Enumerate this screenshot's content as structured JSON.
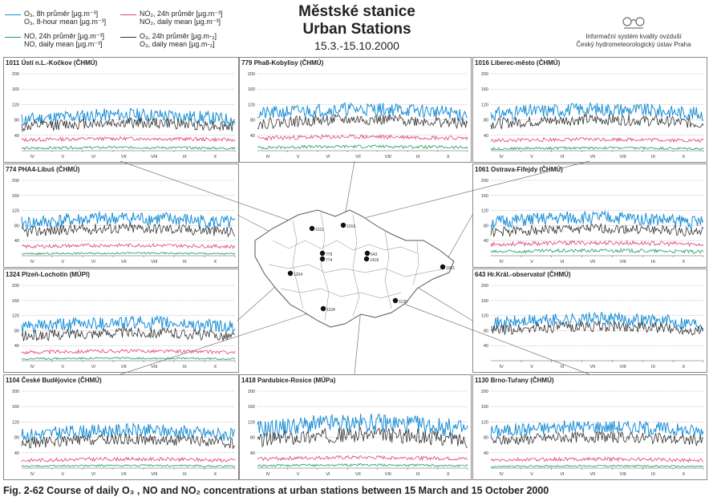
{
  "title": {
    "cs": "Městské stanice",
    "en": "Urban Stations",
    "period": "15.3.-15.10.2000"
  },
  "institution": {
    "logo_icon": "chmi-logo-icon",
    "line1": "Informační systém kvality ovzduší",
    "line2": "Český hydrometeorologický ústav Praha"
  },
  "legend": [
    {
      "line1": "O₃, 8h průměr [µg.m⁻³]",
      "line2": "O₃, 8-hour mean [µg.m⁻³]",
      "color": "#1a8fd6"
    },
    {
      "line1": "NO₂, 24h průměr [µg.m⁻³]",
      "line2": "NO₂, daily mean [µg.m⁻³]",
      "color": "#e0407a"
    },
    {
      "line1": "NO, 24h průměr [µg.m⁻³]",
      "line2": "NO, daily mean [µg.m⁻³]",
      "color": "#1e9e5a"
    },
    {
      "line1": "O₃, 24h průměr [µg.m-₃]",
      "line2": "O₃, daily mean [µg.m-₃]",
      "color": "#333333"
    }
  ],
  "caption": "Fig. 2-62  Course of daily O₃ , NO and NO₂ concentrations at urban stations between 15 March and 15 October 2000",
  "colors": {
    "o3_8h": "#1a8fd6",
    "no2": "#e0407a",
    "no": "#1e9e5a",
    "o3_daily": "#333333",
    "grid": "#999999"
  },
  "chart_data": [
    {
      "type": "line",
      "title": "1011 Ústí n.L.-Kočkov (ČHMÚ)",
      "ylim": [
        0,
        200
      ],
      "yticks": [
        40,
        80,
        120,
        160,
        200
      ],
      "xticks": [
        "IV",
        "V",
        "VI",
        "VII",
        "VIII",
        "IX",
        "X"
      ],
      "series": [
        {
          "name": "O₃, 8h průměr",
          "level": 80,
          "amp": 22,
          "seed": 11
        },
        {
          "name": "O₃, 24h průměr",
          "level": 62,
          "amp": 18,
          "seed": 12
        },
        {
          "name": "NO₂, 24h průměr",
          "level": 28,
          "amp": 6,
          "seed": 13
        },
        {
          "name": "NO, 24h průměr",
          "level": 6,
          "amp": 4,
          "seed": 14
        }
      ]
    },
    {
      "type": "line",
      "title": "779 Pha8-Kobylisy (ČHMÚ)",
      "ylim": [
        0,
        200
      ],
      "yticks": [
        40,
        80,
        120,
        160,
        200
      ],
      "xticks": [
        "IV",
        "V",
        "VI",
        "VII",
        "VIII",
        "IX",
        "X"
      ],
      "series": [
        {
          "name": "O₃, 8h průměr",
          "level": 95,
          "amp": 22,
          "seed": 21
        },
        {
          "name": "O₃, 24h průměr",
          "level": 70,
          "amp": 18,
          "seed": 22
        },
        {
          "name": "NO₂, 24h průměr",
          "level": 32,
          "amp": 7,
          "seed": 23
        },
        {
          "name": "NO, 24h průměr",
          "level": 8,
          "amp": 5,
          "seed": 24
        }
      ]
    },
    {
      "type": "line",
      "title": "1016 Liberec-město (ČHMÚ)",
      "ylim": [
        0,
        200
      ],
      "yticks": [
        40,
        80,
        120,
        160,
        200
      ],
      "xticks": [
        "IV",
        "V",
        "VI",
        "VII",
        "VIII",
        "IX",
        "X"
      ],
      "series": [
        {
          "name": "O₃, 8h průměr",
          "level": 95,
          "amp": 22,
          "seed": 31
        },
        {
          "name": "O₃, 24h průměr",
          "level": 70,
          "amp": 18,
          "seed": 32
        },
        {
          "name": "NO₂, 24h průměr",
          "level": 26,
          "amp": 6,
          "seed": 33
        },
        {
          "name": "NO, 24h průměr",
          "level": 5,
          "amp": 4,
          "seed": 34
        }
      ]
    },
    {
      "type": "line",
      "title": "774 PHA4-Libuš (ČHMÚ)",
      "ylim": [
        0,
        200
      ],
      "yticks": [
        40,
        80,
        120,
        160,
        200
      ],
      "xticks": [
        "IV",
        "V",
        "VI",
        "VII",
        "VIII",
        "IX",
        "X"
      ],
      "series": [
        {
          "name": "O₃, 8h průměr",
          "level": 85,
          "amp": 24,
          "seed": 41
        },
        {
          "name": "O₃, 24h průměr",
          "level": 62,
          "amp": 18,
          "seed": 42
        },
        {
          "name": "NO₂, 24h průměr",
          "level": 24,
          "amp": 6,
          "seed": 43
        },
        {
          "name": "NO, 24h průměr",
          "level": 5,
          "amp": 3,
          "seed": 44
        }
      ]
    },
    {
      "type": "line",
      "title": "1061 Ostrava-Fifejdy (ČHMÚ)",
      "ylim": [
        0,
        200
      ],
      "yticks": [
        40,
        80,
        120,
        160,
        200
      ],
      "xticks": [
        "IV",
        "V",
        "VI",
        "VII",
        "VIII",
        "IX",
        "X"
      ],
      "series": [
        {
          "name": "O₃, 8h průměr",
          "level": 88,
          "amp": 22,
          "seed": 51
        },
        {
          "name": "O₃, 24h průměr",
          "level": 62,
          "amp": 16,
          "seed": 52
        },
        {
          "name": "NO₂, 24h průměr",
          "level": 30,
          "amp": 7,
          "seed": 53
        },
        {
          "name": "NO, 24h průměr",
          "level": 10,
          "amp": 6,
          "seed": 54
        }
      ]
    },
    {
      "type": "line",
      "title": "1324 Plzeň-Lochotín (MÚPl)",
      "ylim": [
        0,
        200
      ],
      "yticks": [
        40,
        80,
        120,
        160,
        200
      ],
      "xticks": [
        "IV",
        "V",
        "VI",
        "VII",
        "VIII",
        "IX",
        "X"
      ],
      "series": [
        {
          "name": "O₃, 8h průměr",
          "level": 88,
          "amp": 22,
          "seed": 61
        },
        {
          "name": "O₃, 24h průměr",
          "level": 64,
          "amp": 18,
          "seed": 62
        },
        {
          "name": "NO₂, 24h průměr",
          "level": 22,
          "amp": 6,
          "seed": 63
        },
        {
          "name": "NO, 24h průměr",
          "level": 5,
          "amp": 3,
          "seed": 64
        }
      ]
    },
    {
      "type": "line",
      "title": "643 Hr.Král.-observatoř (ČHMÚ)",
      "ylim": [
        0,
        200
      ],
      "yticks": [
        40,
        80,
        120,
        160,
        200
      ],
      "xticks": [
        "IV",
        "V",
        "VI",
        "VII",
        "VIII",
        "IX",
        "X"
      ],
      "series": [
        {
          "name": "O₃, 8h průměr",
          "level": 98,
          "amp": 22,
          "seed": 71
        },
        {
          "name": "O₃, 24h průměr",
          "level": 80,
          "amp": 18,
          "seed": 72
        }
      ]
    },
    {
      "type": "line",
      "title": "1104 České Budějovice (ČHMÚ)",
      "ylim": [
        0,
        200
      ],
      "yticks": [
        40,
        80,
        120,
        160,
        200
      ],
      "xticks": [
        "IV",
        "V",
        "VI",
        "VII",
        "VIII",
        "IX",
        "X"
      ],
      "series": [
        {
          "name": "O₃, 8h průměr",
          "level": 85,
          "amp": 22,
          "seed": 81
        },
        {
          "name": "O₃, 24h průměr",
          "level": 64,
          "amp": 18,
          "seed": 82
        },
        {
          "name": "NO₂, 24h průměr",
          "level": 20,
          "amp": 6,
          "seed": 83
        },
        {
          "name": "NO, 24h průměr",
          "level": 5,
          "amp": 3,
          "seed": 84
        }
      ]
    },
    {
      "type": "line",
      "title": "1418 Pardubice-Rosice (MÚPa)",
      "ylim": [
        0,
        200
      ],
      "yticks": [
        40,
        80,
        120,
        160,
        200
      ],
      "xticks": [
        "IV",
        "V",
        "VI",
        "VII",
        "VIII",
        "IX",
        "X"
      ],
      "series": [
        {
          "name": "O₃, 8h průměr",
          "level": 100,
          "amp": 30,
          "seed": 91
        },
        {
          "name": "O₃, 24h průměr",
          "level": 72,
          "amp": 24,
          "seed": 92
        },
        {
          "name": "NO₂, 24h průměr",
          "level": 24,
          "amp": 6,
          "seed": 93
        },
        {
          "name": "NO, 24h průměr",
          "level": 6,
          "amp": 4,
          "seed": 94
        }
      ]
    },
    {
      "type": "line",
      "title": "1130 Brno-Tuřany (ČHMÚ)",
      "ylim": [
        0,
        200
      ],
      "yticks": [
        40,
        80,
        120,
        160,
        200
      ],
      "xticks": [
        "IV",
        "V",
        "VI",
        "VII",
        "VIII",
        "IX",
        "X"
      ],
      "series": [
        {
          "name": "O₃, 8h průměr",
          "level": 95,
          "amp": 22,
          "seed": 101
        },
        {
          "name": "O₃, 24h průměr",
          "level": 70,
          "amp": 18,
          "seed": 102
        },
        {
          "name": "NO₂, 24h průměr",
          "level": 20,
          "amp": 6,
          "seed": 103
        },
        {
          "name": "NO, 24h průměr",
          "level": 4,
          "amp": 3,
          "seed": 104
        }
      ]
    }
  ],
  "map": {
    "stations": [
      {
        "label": "1011"
      },
      {
        "label": "1016"
      },
      {
        "label": "779"
      },
      {
        "label": "774"
      },
      {
        "label": "643"
      },
      {
        "label": "1418"
      },
      {
        "label": "1324"
      },
      {
        "label": "1104"
      },
      {
        "label": "1130"
      },
      {
        "label": "1061"
      }
    ]
  }
}
